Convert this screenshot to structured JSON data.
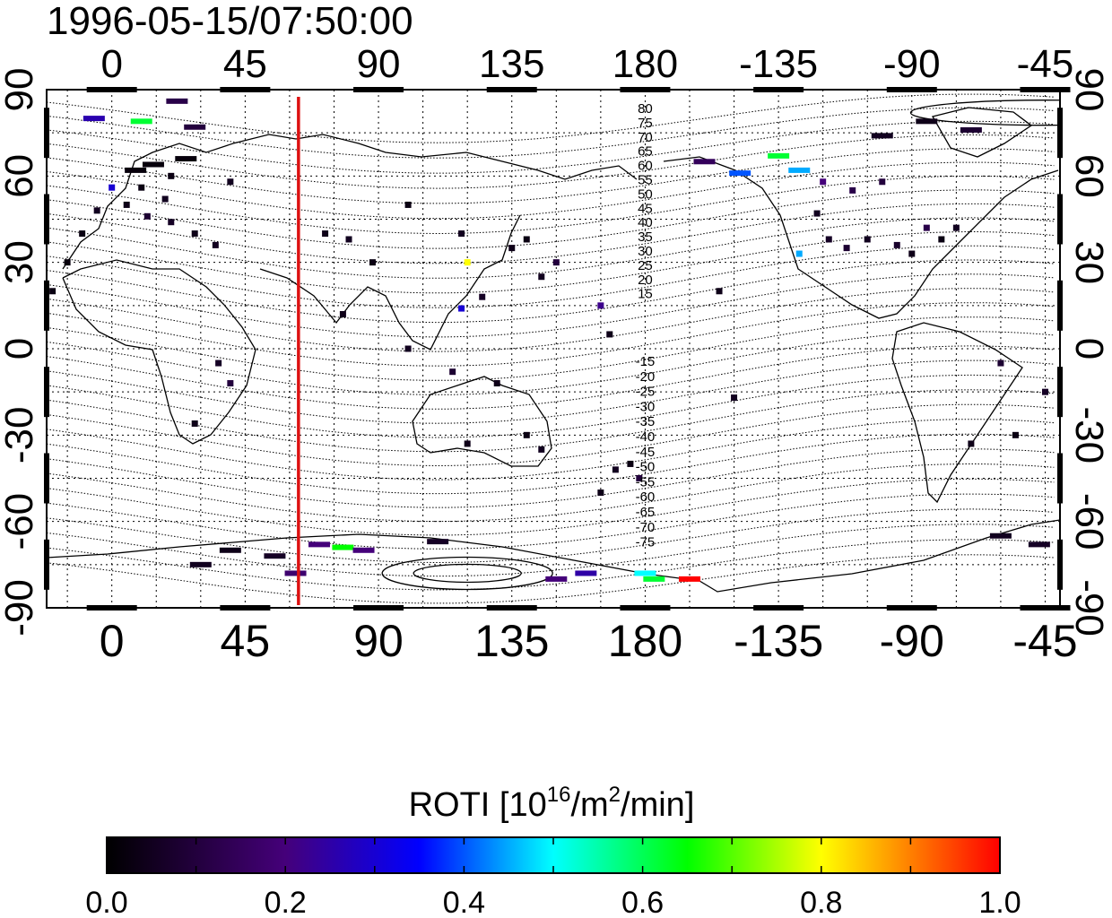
{
  "title": "1996-05-15/07:50:00",
  "axes": {
    "top_ticks": [
      "0",
      "45",
      "90",
      "135",
      "180",
      "-135",
      "-90",
      "-45"
    ],
    "bottom_ticks": [
      "0",
      "45",
      "90",
      "135",
      "180",
      "-135",
      "-90",
      "-45"
    ],
    "left_ticks": [
      "90",
      "60",
      "30",
      "0",
      "-30",
      "-60",
      "-90"
    ],
    "right_ticks": [
      "90",
      "60",
      "30",
      "0",
      "-30",
      "-60",
      "-90"
    ]
  },
  "map": {
    "lon_range": [
      -22,
      320
    ],
    "lat_range": [
      -90,
      90
    ],
    "grid": true,
    "marker_longitude": 63,
    "marker_color": "#dd1111",
    "mag_lat_labels_north": [
      "80",
      "75",
      "70",
      "65",
      "60",
      "55",
      "50",
      "45",
      "40",
      "35",
      "30",
      "25",
      "20",
      "15"
    ],
    "mag_lat_labels_south": [
      "-15",
      "-20",
      "-25",
      "-30",
      "-35",
      "-40",
      "-45",
      "-50",
      "-55",
      "-60",
      "-65",
      "-70",
      "-75"
    ],
    "roti_points": [
      {
        "lon": 8,
        "lat": 62,
        "v": 0.02
      },
      {
        "lon": 14,
        "lat": 64,
        "v": 0.02
      },
      {
        "lon": 20,
        "lat": 60,
        "v": 0.03
      },
      {
        "lon": 25,
        "lat": 66,
        "v": 0.02
      },
      {
        "lon": 10,
        "lat": 56,
        "v": 0.03
      },
      {
        "lon": 18,
        "lat": 52,
        "v": 0.05
      },
      {
        "lon": 5,
        "lat": 50,
        "v": 0.04
      },
      {
        "lon": -5,
        "lat": 48,
        "v": 0.05
      },
      {
        "lon": 12,
        "lat": 46,
        "v": 0.08
      },
      {
        "lon": 20,
        "lat": 44,
        "v": 0.06
      },
      {
        "lon": 28,
        "lat": 40,
        "v": 0.04
      },
      {
        "lon": 35,
        "lat": 36,
        "v": 0.05
      },
      {
        "lon": -10,
        "lat": 40,
        "v": 0.03
      },
      {
        "lon": -15,
        "lat": 30,
        "v": 0.02
      },
      {
        "lon": 0,
        "lat": 56,
        "v": 0.3
      },
      {
        "lon": -6,
        "lat": 80,
        "v": 0.26
      },
      {
        "lon": 10,
        "lat": 79,
        "v": 0.62
      },
      {
        "lon": 22,
        "lat": 86,
        "v": 0.12
      },
      {
        "lon": 28,
        "lat": 77,
        "v": 0.1
      },
      {
        "lon": 40,
        "lat": 58,
        "v": 0.05
      },
      {
        "lon": 72,
        "lat": 40,
        "v": 0.04
      },
      {
        "lon": 80,
        "lat": 38,
        "v": 0.05
      },
      {
        "lon": 88,
        "lat": 30,
        "v": 0.03
      },
      {
        "lon": 78,
        "lat": 12,
        "v": 0.04
      },
      {
        "lon": 100,
        "lat": 50,
        "v": 0.03
      },
      {
        "lon": 118,
        "lat": 40,
        "v": 0.05
      },
      {
        "lon": 120,
        "lat": 30,
        "v": 0.8
      },
      {
        "lon": 118,
        "lat": 14,
        "v": 0.3
      },
      {
        "lon": 125,
        "lat": 18,
        "v": 0.06
      },
      {
        "lon": 135,
        "lat": 35,
        "v": 0.04
      },
      {
        "lon": 140,
        "lat": 38,
        "v": 0.03
      },
      {
        "lon": 145,
        "lat": 25,
        "v": 0.05
      },
      {
        "lon": 165,
        "lat": 15,
        "v": 0.22
      },
      {
        "lon": 168,
        "lat": 5,
        "v": 0.04
      },
      {
        "lon": 150,
        "lat": 30,
        "v": 0.1
      },
      {
        "lon": 100,
        "lat": 0,
        "v": 0.05
      },
      {
        "lon": 115,
        "lat": -8,
        "v": 0.08
      },
      {
        "lon": 130,
        "lat": -12,
        "v": 0.04
      },
      {
        "lon": 140,
        "lat": -30,
        "v": 0.03
      },
      {
        "lon": 145,
        "lat": -35,
        "v": 0.05
      },
      {
        "lon": 120,
        "lat": -33,
        "v": 0.04
      },
      {
        "lon": 175,
        "lat": -40,
        "v": 0.03
      },
      {
        "lon": 178,
        "lat": -45,
        "v": 0.1
      },
      {
        "lon": 170,
        "lat": -42,
        "v": 0.05
      },
      {
        "lon": 165,
        "lat": -50,
        "v": 0.04
      },
      {
        "lon": 28,
        "lat": -26,
        "v": 0.04
      },
      {
        "lon": 36,
        "lat": -5,
        "v": 0.06
      },
      {
        "lon": 40,
        "lat": -12,
        "v": 0.1
      },
      {
        "lon": -20,
        "lat": 20,
        "v": 0.03
      },
      {
        "lon": -160,
        "lat": 65,
        "v": 0.15
      },
      {
        "lon": -148,
        "lat": 61,
        "v": 0.4
      },
      {
        "lon": -135,
        "lat": 67,
        "v": 0.62
      },
      {
        "lon": -128,
        "lat": 62,
        "v": 0.45
      },
      {
        "lon": -120,
        "lat": 58,
        "v": 0.2
      },
      {
        "lon": -110,
        "lat": 55,
        "v": 0.12
      },
      {
        "lon": -100,
        "lat": 58,
        "v": 0.1
      },
      {
        "lon": -122,
        "lat": 47,
        "v": 0.05
      },
      {
        "lon": -118,
        "lat": 38,
        "v": 0.06
      },
      {
        "lon": -112,
        "lat": 35,
        "v": 0.08
      },
      {
        "lon": -105,
        "lat": 38,
        "v": 0.05
      },
      {
        "lon": -95,
        "lat": 36,
        "v": 0.07
      },
      {
        "lon": -90,
        "lat": 33,
        "v": 0.04
      },
      {
        "lon": -80,
        "lat": 38,
        "v": 0.03
      },
      {
        "lon": -75,
        "lat": 42,
        "v": 0.05
      },
      {
        "lon": -85,
        "lat": 42,
        "v": 0.12
      },
      {
        "lon": -128,
        "lat": 33,
        "v": 0.45
      },
      {
        "lon": -100,
        "lat": 74,
        "v": 0.05
      },
      {
        "lon": -85,
        "lat": 79,
        "v": 0.04
      },
      {
        "lon": -70,
        "lat": 76,
        "v": 0.08
      },
      {
        "lon": -155,
        "lat": 20,
        "v": 0.04
      },
      {
        "lon": -150,
        "lat": -17,
        "v": 0.05
      },
      {
        "lon": -70,
        "lat": -33,
        "v": 0.04
      },
      {
        "lon": -60,
        "lat": -5,
        "v": 0.08
      },
      {
        "lon": -45,
        "lat": -15,
        "v": 0.06
      },
      {
        "lon": -55,
        "lat": -30,
        "v": 0.03
      },
      {
        "lon": -60,
        "lat": -65,
        "v": 0.05
      },
      {
        "lon": -47,
        "lat": -68,
        "v": 0.06
      },
      {
        "lon": 30,
        "lat": -75,
        "v": 0.05
      },
      {
        "lon": 40,
        "lat": -70,
        "v": 0.04
      },
      {
        "lon": 55,
        "lat": -72,
        "v": 0.06
      },
      {
        "lon": 62,
        "lat": -78,
        "v": 0.18
      },
      {
        "lon": 70,
        "lat": -68,
        "v": 0.2
      },
      {
        "lon": 78,
        "lat": -69,
        "v": 0.65
      },
      {
        "lon": 85,
        "lat": -70,
        "v": 0.2
      },
      {
        "lon": 110,
        "lat": -67,
        "v": 0.06
      },
      {
        "lon": 150,
        "lat": -80,
        "v": 0.2
      },
      {
        "lon": 160,
        "lat": -78,
        "v": 0.25
      },
      {
        "lon": 180,
        "lat": -78,
        "v": 0.5
      },
      {
        "lon": 183,
        "lat": -80,
        "v": 0.62
      },
      {
        "lon": 195,
        "lat": -80,
        "v": 1.0
      }
    ]
  },
  "colorbar": {
    "title_main": "ROTI  [10",
    "title_sup1": "16",
    "title_mid": "/m",
    "title_sup2": "2",
    "title_end": "/min]",
    "tick_labels": [
      "0.0",
      "0.2",
      "0.4",
      "0.6",
      "0.8",
      "1.0"
    ],
    "range": [
      0.0,
      1.0
    ],
    "colors": [
      "#000000",
      "#45007a",
      "#0000ff",
      "#00ffff",
      "#00ff00",
      "#ffff00",
      "#ff0000"
    ]
  }
}
